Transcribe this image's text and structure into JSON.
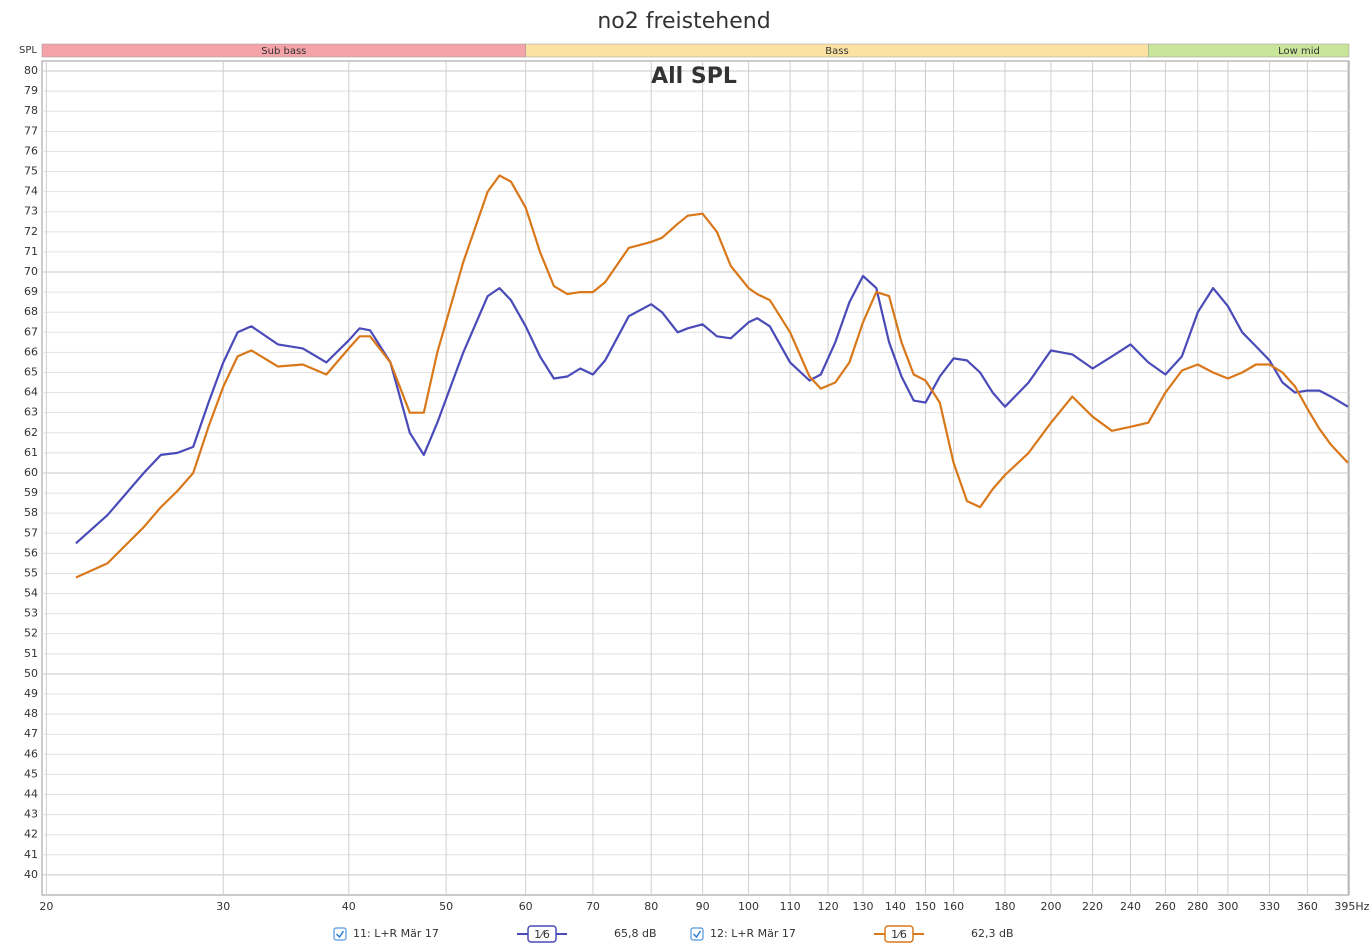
{
  "chart_data": {
    "type": "line",
    "title": "no2 freistehend",
    "annotation": "All SPL",
    "y_label": "SPL",
    "xscale": "log",
    "grid": true,
    "xlim": [
      19.8,
      396
    ],
    "ylim": [
      39,
      80.5
    ],
    "xticks": [
      20,
      30,
      40,
      50,
      60,
      70,
      80,
      90,
      100,
      110,
      120,
      130,
      140,
      150,
      160,
      180,
      200,
      220,
      240,
      260,
      280,
      300,
      330,
      360,
      {
        "value": 395,
        "label": "395Hz"
      }
    ],
    "yticks": [
      40,
      41,
      42,
      43,
      44,
      45,
      46,
      47,
      48,
      49,
      50,
      51,
      52,
      53,
      54,
      55,
      56,
      57,
      58,
      59,
      60,
      61,
      62,
      63,
      64,
      65,
      66,
      67,
      68,
      69,
      70,
      71,
      72,
      73,
      74,
      75,
      76,
      77,
      78,
      79,
      80
    ],
    "bands": [
      {
        "label": "Sub bass",
        "from": 19.8,
        "to": 60,
        "color": "#f4a3a8"
      },
      {
        "label": "Bass",
        "from": 60,
        "to": 250,
        "color": "#fbe2a3"
      },
      {
        "label": "Low mid",
        "from": 250,
        "to": 396,
        "color": "#c9e59a"
      }
    ],
    "x": [
      21.4,
      23,
      25,
      26,
      27,
      28,
      29,
      30,
      31,
      32,
      34,
      36,
      38,
      40,
      41,
      42,
      44,
      46,
      47.5,
      49,
      52,
      55,
      56.5,
      58,
      60,
      62,
      64,
      66,
      68,
      70,
      72,
      76,
      80,
      82,
      85,
      87,
      90,
      93,
      96,
      100,
      102,
      105,
      110,
      115,
      118,
      122,
      126,
      130,
      134,
      138,
      142,
      146,
      150,
      155,
      160,
      165,
      170,
      175,
      180,
      190,
      200,
      210,
      220,
      230,
      240,
      250,
      260,
      270,
      280,
      290,
      300,
      310,
      320,
      330,
      340,
      350,
      360,
      370,
      380,
      395
    ],
    "series": [
      {
        "name": "11: L+R Mär 17",
        "color": "#4a4ab8",
        "smoothing": "1⁄6",
        "level": "65,8 dB",
        "values": [
          56.5,
          57.9,
          60.0,
          60.9,
          61.0,
          61.3,
          63.5,
          65.5,
          67.0,
          67.3,
          66.4,
          66.2,
          65.5,
          66.6,
          67.2,
          67.1,
          65.5,
          62.0,
          60.9,
          62.5,
          66.0,
          68.8,
          69.2,
          68.6,
          67.3,
          65.8,
          64.7,
          64.8,
          65.2,
          64.9,
          65.6,
          67.8,
          68.4,
          68.0,
          67.0,
          67.2,
          67.4,
          66.8,
          66.7,
          67.5,
          67.7,
          67.3,
          65.5,
          64.6,
          64.9,
          66.5,
          68.5,
          69.8,
          69.2,
          66.5,
          64.8,
          63.6,
          63.5,
          64.8,
          65.7,
          65.6,
          65.0,
          64.0,
          63.3,
          64.5,
          66.1,
          65.9,
          65.2,
          65.8,
          66.4,
          65.5,
          64.9,
          65.8,
          68.0,
          69.2,
          68.3,
          67.0,
          66.3,
          65.6,
          64.5,
          64.0,
          64.1,
          64.1,
          63.8,
          63.3
        ]
      },
      {
        "name": "12: L+R Mär 17",
        "color": "#d9781a",
        "smoothing": "1⁄6",
        "level": "62,3 dB",
        "values": [
          54.8,
          55.5,
          57.3,
          58.3,
          59.1,
          60.0,
          62.3,
          64.3,
          65.8,
          66.1,
          65.3,
          65.4,
          64.9,
          66.2,
          66.8,
          66.8,
          65.5,
          63.0,
          63.0,
          66.0,
          70.5,
          74.0,
          74.8,
          74.5,
          73.2,
          71.0,
          69.3,
          68.9,
          69.0,
          69.0,
          69.5,
          71.2,
          71.5,
          71.7,
          72.4,
          72.8,
          72.9,
          72.0,
          70.3,
          69.2,
          68.9,
          68.6,
          67.0,
          64.8,
          64.2,
          64.5,
          65.5,
          67.5,
          69.0,
          68.8,
          66.5,
          64.9,
          64.6,
          63.5,
          60.5,
          58.6,
          58.3,
          59.2,
          59.9,
          61.0,
          62.5,
          63.8,
          62.8,
          62.1,
          62.3,
          62.5,
          64.0,
          65.1,
          65.4,
          65.0,
          64.7,
          65.0,
          65.4,
          65.4,
          65.0,
          64.3,
          63.2,
          62.2,
          61.4,
          60.5
        ]
      }
    ]
  }
}
